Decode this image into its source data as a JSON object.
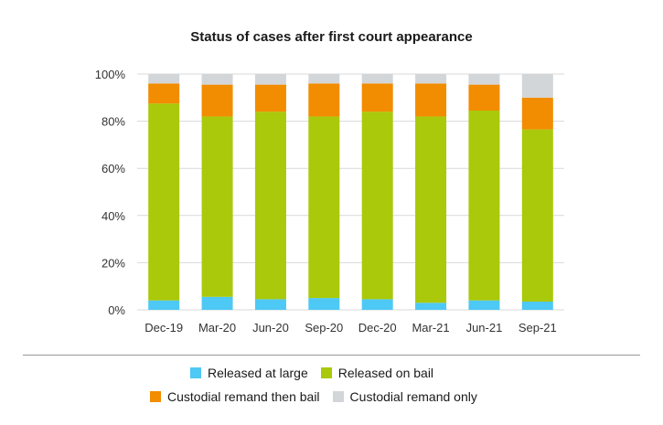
{
  "chart_data": {
    "type": "bar",
    "stacked": true,
    "title": "Status of cases after first court appearance",
    "xlabel": "",
    "ylabel": "",
    "ylim": [
      0,
      100
    ],
    "yticks": [
      "0%",
      "20%",
      "40%",
      "60%",
      "80%",
      "100%"
    ],
    "grid": true,
    "legend_position": "bottom",
    "categories": [
      "Dec-19",
      "Mar-20",
      "Jun-20",
      "Sep-20",
      "Dec-20",
      "Mar-21",
      "Jun-21",
      "Sep-21"
    ],
    "series": [
      {
        "name": "Released at large",
        "color": "#4ec8f4",
        "values": [
          4,
          5.5,
          4.5,
          5,
          4.5,
          3,
          4,
          3.5
        ]
      },
      {
        "name": "Released on bail",
        "color": "#a9c90a",
        "values": [
          83.5,
          76.5,
          79.5,
          77,
          79.5,
          79,
          80.5,
          73
        ]
      },
      {
        "name": "Custodial remand then bail",
        "color": "#f28c00",
        "values": [
          8.5,
          13.5,
          11.5,
          14,
          12,
          14,
          11,
          13.5
        ]
      },
      {
        "name": "Custodial remand only",
        "color": "#d3d6d9",
        "values": [
          4,
          4.5,
          4.5,
          4,
          4,
          4,
          4.5,
          10
        ]
      }
    ]
  }
}
